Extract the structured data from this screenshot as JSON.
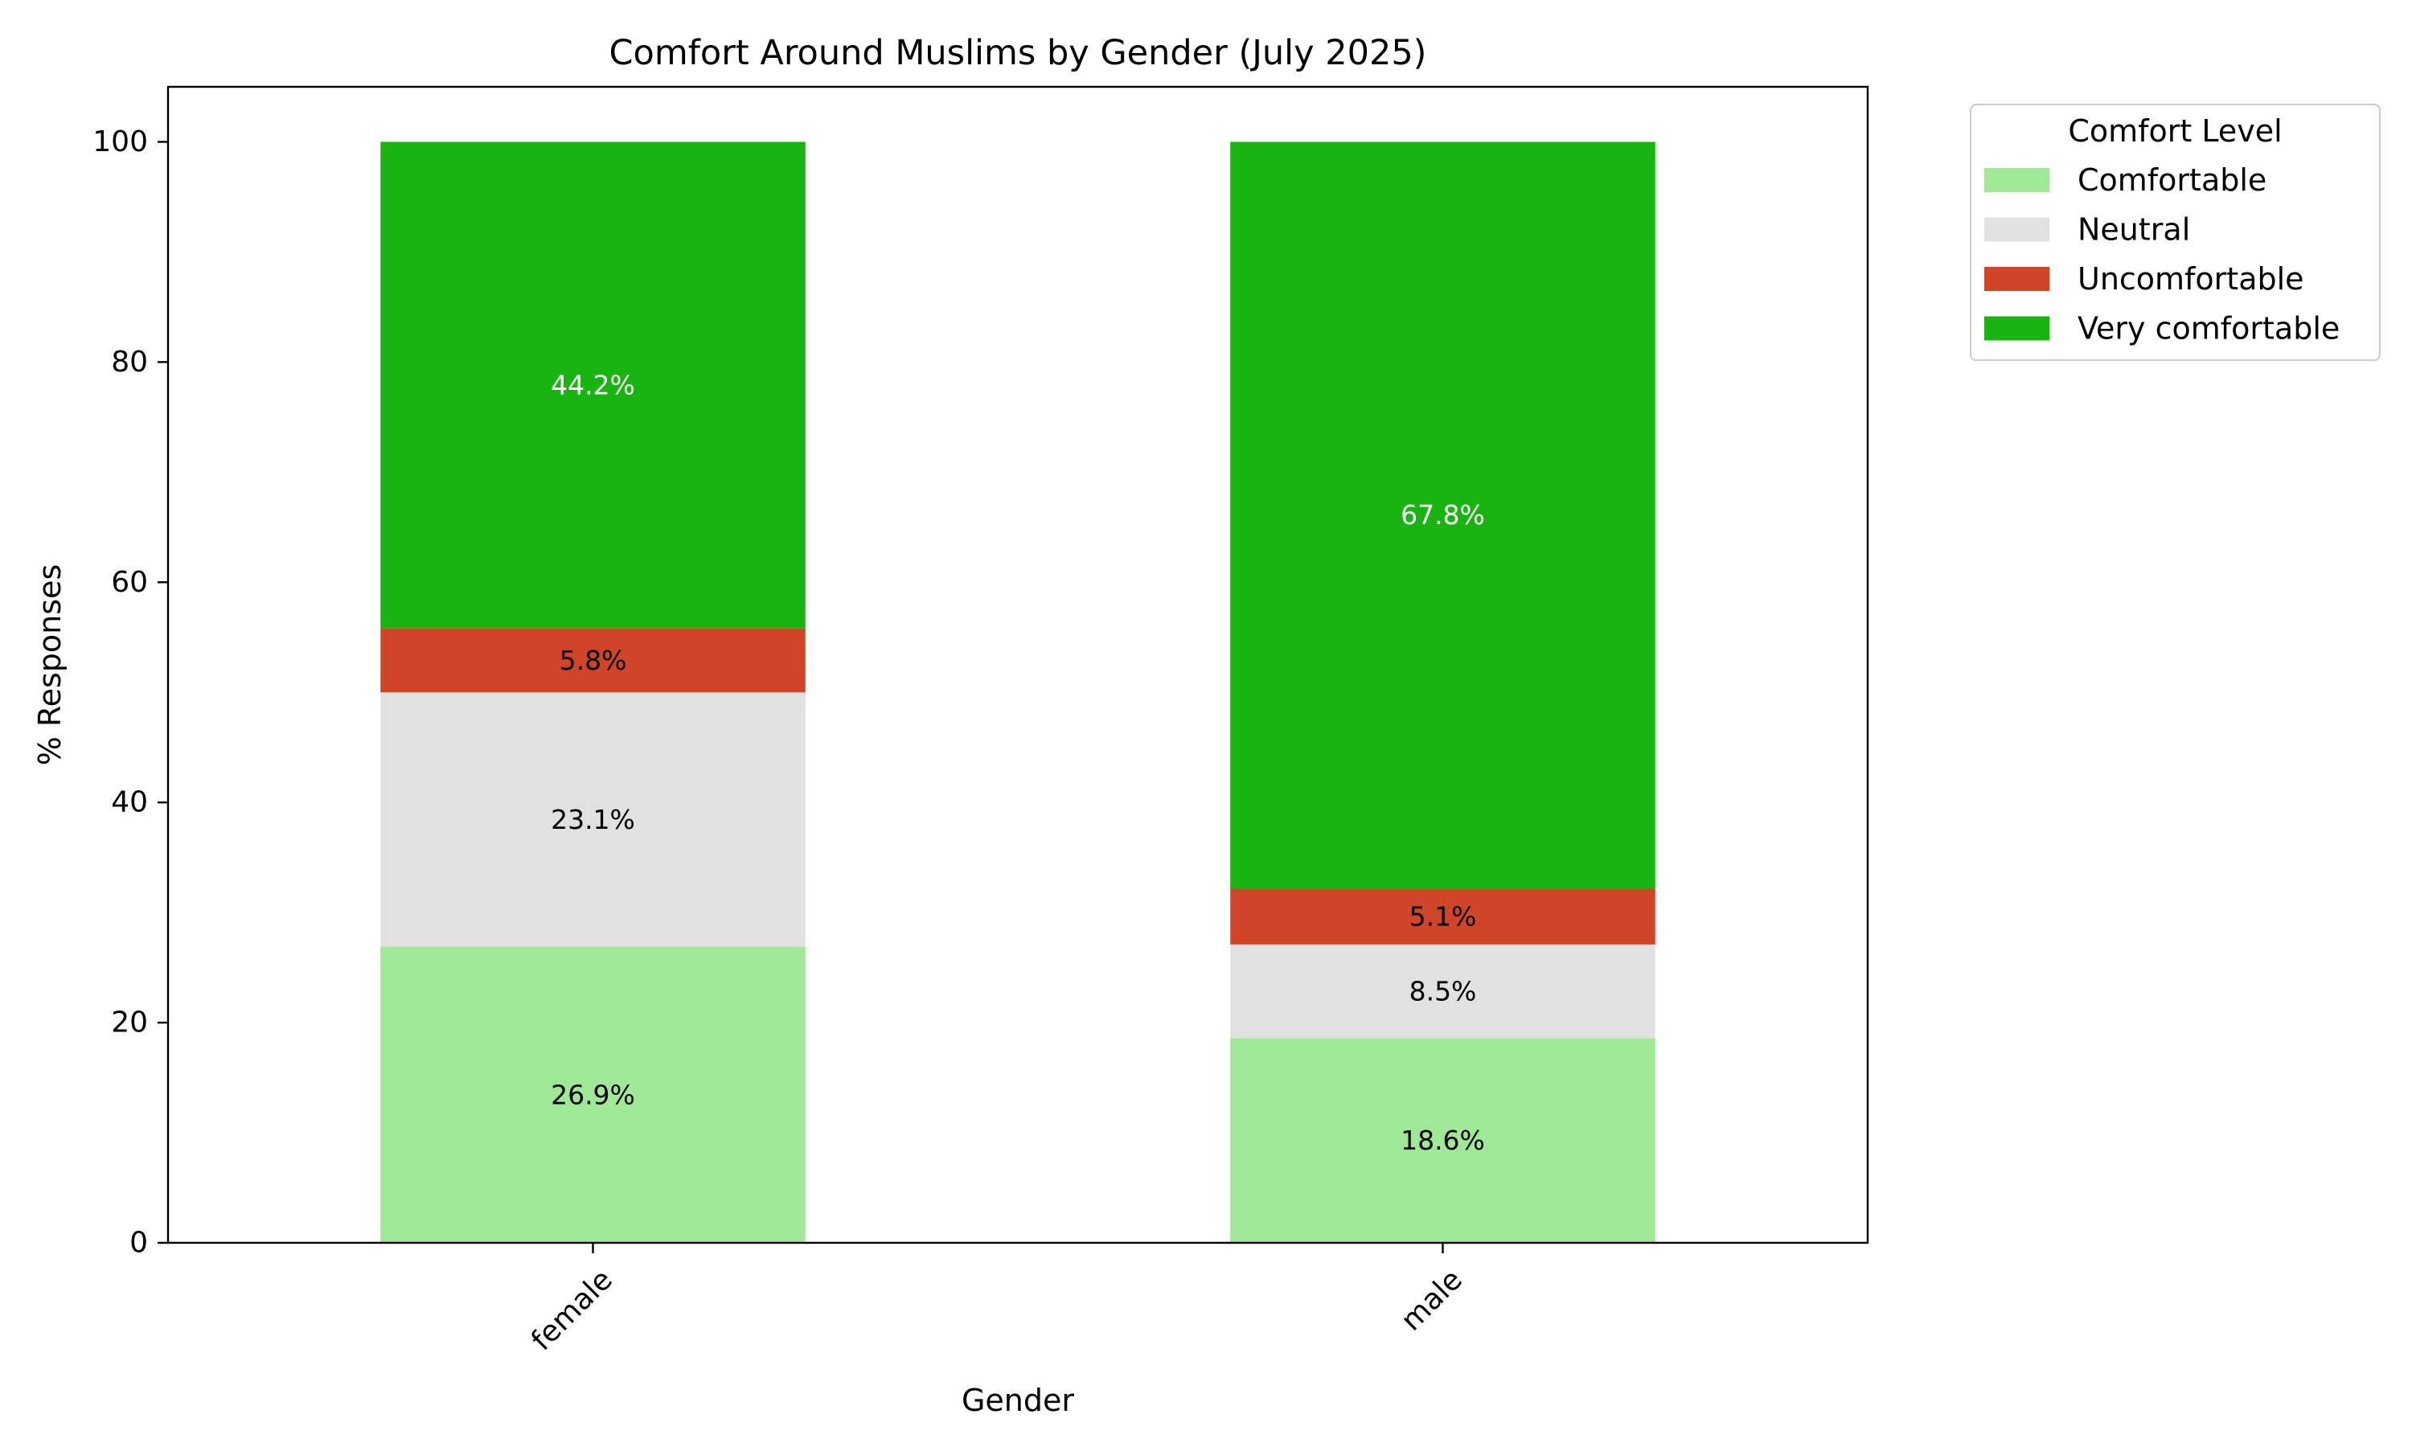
{
  "chart_data": {
    "type": "bar",
    "stacked": true,
    "title": "Comfort Around Muslims by Gender (July 2025)",
    "xlabel": "Gender",
    "ylabel": "% Responses",
    "categories": [
      "female",
      "male"
    ],
    "ylim": [
      0,
      105
    ],
    "yticks": [
      0,
      20,
      40,
      60,
      80,
      100
    ],
    "grid": false,
    "legend": {
      "title": "Comfort Level",
      "placement": "outside top-right"
    },
    "series": [
      {
        "name": "Comfortable",
        "color": "#9ee896",
        "values": [
          26.9,
          18.6
        ],
        "labels": [
          "26.9%",
          "18.6%"
        ],
        "label_color": "#000000"
      },
      {
        "name": "Neutral",
        "color": "#e2e1e1",
        "values": [
          23.1,
          8.5
        ],
        "labels": [
          "23.1%",
          "8.5%"
        ],
        "label_color": "#000000"
      },
      {
        "name": "Uncomfortable",
        "color": "#d04428",
        "values": [
          5.8,
          5.1
        ],
        "labels": [
          "5.8%",
          "5.1%"
        ],
        "label_color": "#000000"
      },
      {
        "name": "Very comfortable",
        "color": "#18b511",
        "values": [
          44.2,
          67.8
        ],
        "labels": [
          "44.2%",
          "67.8%"
        ],
        "label_color": "#ffffff"
      }
    ]
  }
}
